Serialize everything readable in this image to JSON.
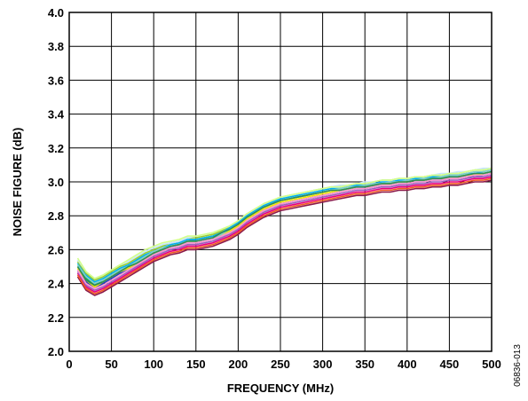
{
  "chart_data": {
    "type": "line",
    "xlabel": "FREQUENCY (MHz)",
    "ylabel": "NOISE FIGURE (dB)",
    "xlim": [
      0,
      500
    ],
    "ylim": [
      2.0,
      4.0
    ],
    "xticks": [
      0,
      50,
      100,
      150,
      200,
      250,
      300,
      350,
      400,
      450,
      500
    ],
    "yticks": [
      2.0,
      2.2,
      2.4,
      2.6,
      2.8,
      3.0,
      3.2,
      3.4,
      3.6,
      3.8,
      4.0
    ],
    "x_tick_labels": [
      "0",
      "50",
      "100",
      "150",
      "200",
      "250",
      "300",
      "350",
      "400",
      "450",
      "500"
    ],
    "y_tick_labels": [
      "2.0",
      "2.2",
      "2.4",
      "2.6",
      "2.8",
      "3.0",
      "3.2",
      "3.4",
      "3.6",
      "3.8",
      "4.0"
    ],
    "grid": true,
    "figure_id": "06836-013",
    "x": [
      10,
      20,
      30,
      40,
      50,
      60,
      70,
      80,
      90,
      100,
      110,
      120,
      130,
      140,
      150,
      160,
      170,
      180,
      190,
      200,
      210,
      220,
      230,
      240,
      250,
      260,
      270,
      280,
      290,
      300,
      310,
      320,
      330,
      340,
      350,
      360,
      370,
      380,
      390,
      400,
      410,
      420,
      430,
      440,
      450,
      460,
      470,
      480,
      490,
      500
    ],
    "series": [
      {
        "color": "#1f3fbf",
        "values": [
          2.48,
          2.41,
          2.37,
          2.4,
          2.43,
          2.46,
          2.48,
          2.51,
          2.54,
          2.57,
          2.59,
          2.61,
          2.62,
          2.64,
          2.64,
          2.65,
          2.66,
          2.68,
          2.7,
          2.73,
          2.77,
          2.8,
          2.83,
          2.85,
          2.87,
          2.88,
          2.89,
          2.9,
          2.91,
          2.92,
          2.93,
          2.94,
          2.95,
          2.96,
          2.96,
          2.97,
          2.98,
          2.98,
          2.99,
          2.99,
          3.0,
          3.0,
          3.01,
          3.01,
          3.02,
          3.02,
          3.03,
          3.03,
          3.04,
          3.05
        ]
      },
      {
        "color": "#00a651",
        "values": [
          2.5,
          2.43,
          2.39,
          2.42,
          2.45,
          2.48,
          2.5,
          2.53,
          2.56,
          2.58,
          2.6,
          2.62,
          2.63,
          2.65,
          2.66,
          2.67,
          2.68,
          2.7,
          2.72,
          2.75,
          2.79,
          2.82,
          2.85,
          2.87,
          2.89,
          2.9,
          2.91,
          2.92,
          2.93,
          2.94,
          2.95,
          2.95,
          2.96,
          2.97,
          2.97,
          2.98,
          2.99,
          2.99,
          3.0,
          3.0,
          3.01,
          3.01,
          3.02,
          3.02,
          3.03,
          3.03,
          3.04,
          3.05,
          3.05,
          3.06
        ]
      },
      {
        "color": "#e6007e",
        "values": [
          2.46,
          2.38,
          2.35,
          2.37,
          2.4,
          2.43,
          2.46,
          2.49,
          2.52,
          2.55,
          2.57,
          2.59,
          2.6,
          2.62,
          2.62,
          2.63,
          2.64,
          2.66,
          2.68,
          2.71,
          2.75,
          2.78,
          2.81,
          2.83,
          2.85,
          2.86,
          2.87,
          2.88,
          2.89,
          2.9,
          2.91,
          2.92,
          2.93,
          2.94,
          2.94,
          2.95,
          2.96,
          2.96,
          2.97,
          2.97,
          2.98,
          2.98,
          2.99,
          2.99,
          3.0,
          3.0,
          3.01,
          3.02,
          3.02,
          3.03
        ]
      },
      {
        "color": "#00aeef",
        "values": [
          2.52,
          2.45,
          2.41,
          2.43,
          2.46,
          2.49,
          2.51,
          2.54,
          2.57,
          2.59,
          2.61,
          2.63,
          2.64,
          2.66,
          2.66,
          2.67,
          2.68,
          2.7,
          2.73,
          2.76,
          2.8,
          2.83,
          2.86,
          2.88,
          2.9,
          2.91,
          2.92,
          2.93,
          2.94,
          2.95,
          2.96,
          2.96,
          2.97,
          2.98,
          2.98,
          2.99,
          3.0,
          3.0,
          3.01,
          3.01,
          3.02,
          3.02,
          3.03,
          3.03,
          3.04,
          3.04,
          3.05,
          3.05,
          3.06,
          3.07
        ]
      },
      {
        "color": "#f7e400",
        "values": [
          2.49,
          2.42,
          2.38,
          2.41,
          2.44,
          2.47,
          2.49,
          2.52,
          2.55,
          2.58,
          2.6,
          2.62,
          2.63,
          2.65,
          2.65,
          2.66,
          2.67,
          2.69,
          2.71,
          2.74,
          2.78,
          2.81,
          2.84,
          2.86,
          2.88,
          2.89,
          2.9,
          2.91,
          2.92,
          2.93,
          2.94,
          2.95,
          2.96,
          2.97,
          2.97,
          2.98,
          2.99,
          2.99,
          3.0,
          3.0,
          3.01,
          3.01,
          3.02,
          3.02,
          3.03,
          3.03,
          3.04,
          3.04,
          3.05,
          3.06
        ]
      },
      {
        "color": "#8b1a4a",
        "values": [
          2.44,
          2.36,
          2.33,
          2.35,
          2.38,
          2.41,
          2.44,
          2.47,
          2.5,
          2.53,
          2.55,
          2.57,
          2.58,
          2.6,
          2.6,
          2.61,
          2.62,
          2.64,
          2.66,
          2.69,
          2.73,
          2.76,
          2.79,
          2.81,
          2.83,
          2.84,
          2.85,
          2.86,
          2.87,
          2.88,
          2.89,
          2.9,
          2.91,
          2.92,
          2.92,
          2.93,
          2.94,
          2.94,
          2.95,
          2.95,
          2.96,
          2.96,
          2.97,
          2.97,
          2.98,
          2.98,
          2.99,
          3.0,
          3.0,
          3.01
        ]
      },
      {
        "color": "#7fd0c8",
        "values": [
          2.51,
          2.44,
          2.4,
          2.42,
          2.45,
          2.48,
          2.5,
          2.53,
          2.56,
          2.59,
          2.61,
          2.62,
          2.63,
          2.65,
          2.65,
          2.66,
          2.67,
          2.69,
          2.72,
          2.75,
          2.79,
          2.82,
          2.85,
          2.87,
          2.89,
          2.9,
          2.91,
          2.92,
          2.93,
          2.94,
          2.95,
          2.96,
          2.97,
          2.97,
          2.98,
          2.99,
          2.99,
          3.0,
          3.0,
          3.01,
          3.01,
          3.02,
          3.02,
          3.03,
          3.04,
          3.04,
          3.05,
          3.06,
          3.06,
          3.07
        ]
      },
      {
        "color": "#a05cbf",
        "values": [
          2.47,
          2.39,
          2.36,
          2.38,
          2.41,
          2.44,
          2.47,
          2.5,
          2.53,
          2.56,
          2.58,
          2.6,
          2.61,
          2.63,
          2.63,
          2.64,
          2.65,
          2.67,
          2.69,
          2.72,
          2.76,
          2.79,
          2.82,
          2.84,
          2.86,
          2.87,
          2.88,
          2.89,
          2.9,
          2.91,
          2.92,
          2.93,
          2.94,
          2.95,
          2.95,
          2.96,
          2.97,
          2.97,
          2.98,
          2.98,
          2.99,
          2.99,
          3.0,
          3.0,
          3.01,
          3.01,
          3.02,
          3.03,
          3.03,
          3.04
        ]
      },
      {
        "color": "#9acd32",
        "values": [
          2.53,
          2.46,
          2.42,
          2.44,
          2.47,
          2.5,
          2.52,
          2.55,
          2.58,
          2.6,
          2.62,
          2.64,
          2.65,
          2.67,
          2.67,
          2.68,
          2.69,
          2.71,
          2.74,
          2.77,
          2.81,
          2.84,
          2.87,
          2.89,
          2.91,
          2.92,
          2.93,
          2.94,
          2.95,
          2.96,
          2.97,
          2.97,
          2.98,
          2.99,
          2.99,
          3.0,
          3.01,
          3.01,
          3.02,
          3.02,
          3.03,
          3.03,
          3.04,
          3.04,
          3.05,
          3.05,
          3.06,
          3.07,
          3.07,
          3.08
        ]
      },
      {
        "color": "#f15a24",
        "values": [
          2.45,
          2.37,
          2.34,
          2.36,
          2.39,
          2.42,
          2.45,
          2.48,
          2.51,
          2.54,
          2.56,
          2.58,
          2.59,
          2.61,
          2.61,
          2.62,
          2.63,
          2.65,
          2.67,
          2.7,
          2.74,
          2.77,
          2.8,
          2.82,
          2.84,
          2.85,
          2.86,
          2.87,
          2.88,
          2.89,
          2.9,
          2.91,
          2.92,
          2.93,
          2.93,
          2.94,
          2.95,
          2.95,
          2.96,
          2.96,
          2.97,
          2.97,
          2.98,
          2.98,
          2.99,
          2.99,
          3.0,
          3.01,
          3.01,
          3.02
        ]
      },
      {
        "color": "#2e8b57",
        "values": [
          2.5,
          2.42,
          2.39,
          2.41,
          2.44,
          2.47,
          2.5,
          2.52,
          2.55,
          2.58,
          2.6,
          2.62,
          2.63,
          2.65,
          2.65,
          2.66,
          2.67,
          2.7,
          2.72,
          2.75,
          2.79,
          2.82,
          2.85,
          2.87,
          2.89,
          2.9,
          2.91,
          2.92,
          2.93,
          2.94,
          2.95,
          2.95,
          2.96,
          2.97,
          2.97,
          2.98,
          2.99,
          2.99,
          3.0,
          3.0,
          3.01,
          3.01,
          3.02,
          3.02,
          3.03,
          3.03,
          3.04,
          3.05,
          3.05,
          3.06
        ]
      },
      {
        "color": "#ff99cc",
        "values": [
          2.48,
          2.4,
          2.37,
          2.39,
          2.42,
          2.45,
          2.48,
          2.51,
          2.54,
          2.57,
          2.59,
          2.61,
          2.62,
          2.64,
          2.64,
          2.65,
          2.66,
          2.68,
          2.7,
          2.73,
          2.77,
          2.8,
          2.83,
          2.85,
          2.87,
          2.88,
          2.89,
          2.9,
          2.91,
          2.92,
          2.93,
          2.94,
          2.95,
          2.96,
          2.96,
          2.97,
          2.98,
          2.98,
          2.99,
          2.99,
          3.0,
          3.0,
          3.01,
          3.01,
          3.02,
          3.02,
          3.03,
          3.04,
          3.04,
          3.05
        ]
      },
      {
        "color": "#c8e6ff",
        "values": [
          2.54,
          2.47,
          2.43,
          2.45,
          2.48,
          2.51,
          2.53,
          2.56,
          2.59,
          2.61,
          2.63,
          2.64,
          2.65,
          2.67,
          2.68,
          2.69,
          2.7,
          2.72,
          2.74,
          2.77,
          2.81,
          2.84,
          2.87,
          2.89,
          2.91,
          2.92,
          2.93,
          2.94,
          2.95,
          2.96,
          2.97,
          2.98,
          2.98,
          2.99,
          3.0,
          3.0,
          3.01,
          3.01,
          3.02,
          3.02,
          3.03,
          3.03,
          3.04,
          3.05,
          3.05,
          3.06,
          3.06,
          3.07,
          3.08,
          3.08
        ]
      },
      {
        "color": "#d4ff8a",
        "values": [
          2.55,
          2.47,
          2.43,
          2.45,
          2.48,
          2.51,
          2.54,
          2.57,
          2.6,
          2.62,
          2.64,
          2.65,
          2.66,
          2.68,
          2.68,
          2.69,
          2.7,
          2.72,
          2.74,
          2.77,
          2.81,
          2.84,
          2.87,
          2.89,
          2.91,
          2.92,
          2.93,
          2.94,
          2.95,
          2.96,
          2.97,
          2.97,
          2.98,
          2.99,
          2.99,
          3.0,
          3.01,
          3.01,
          3.02,
          3.02,
          3.03,
          3.03,
          3.04,
          3.04,
          3.05,
          3.05,
          3.06,
          3.07,
          3.07,
          3.08
        ]
      }
    ]
  }
}
